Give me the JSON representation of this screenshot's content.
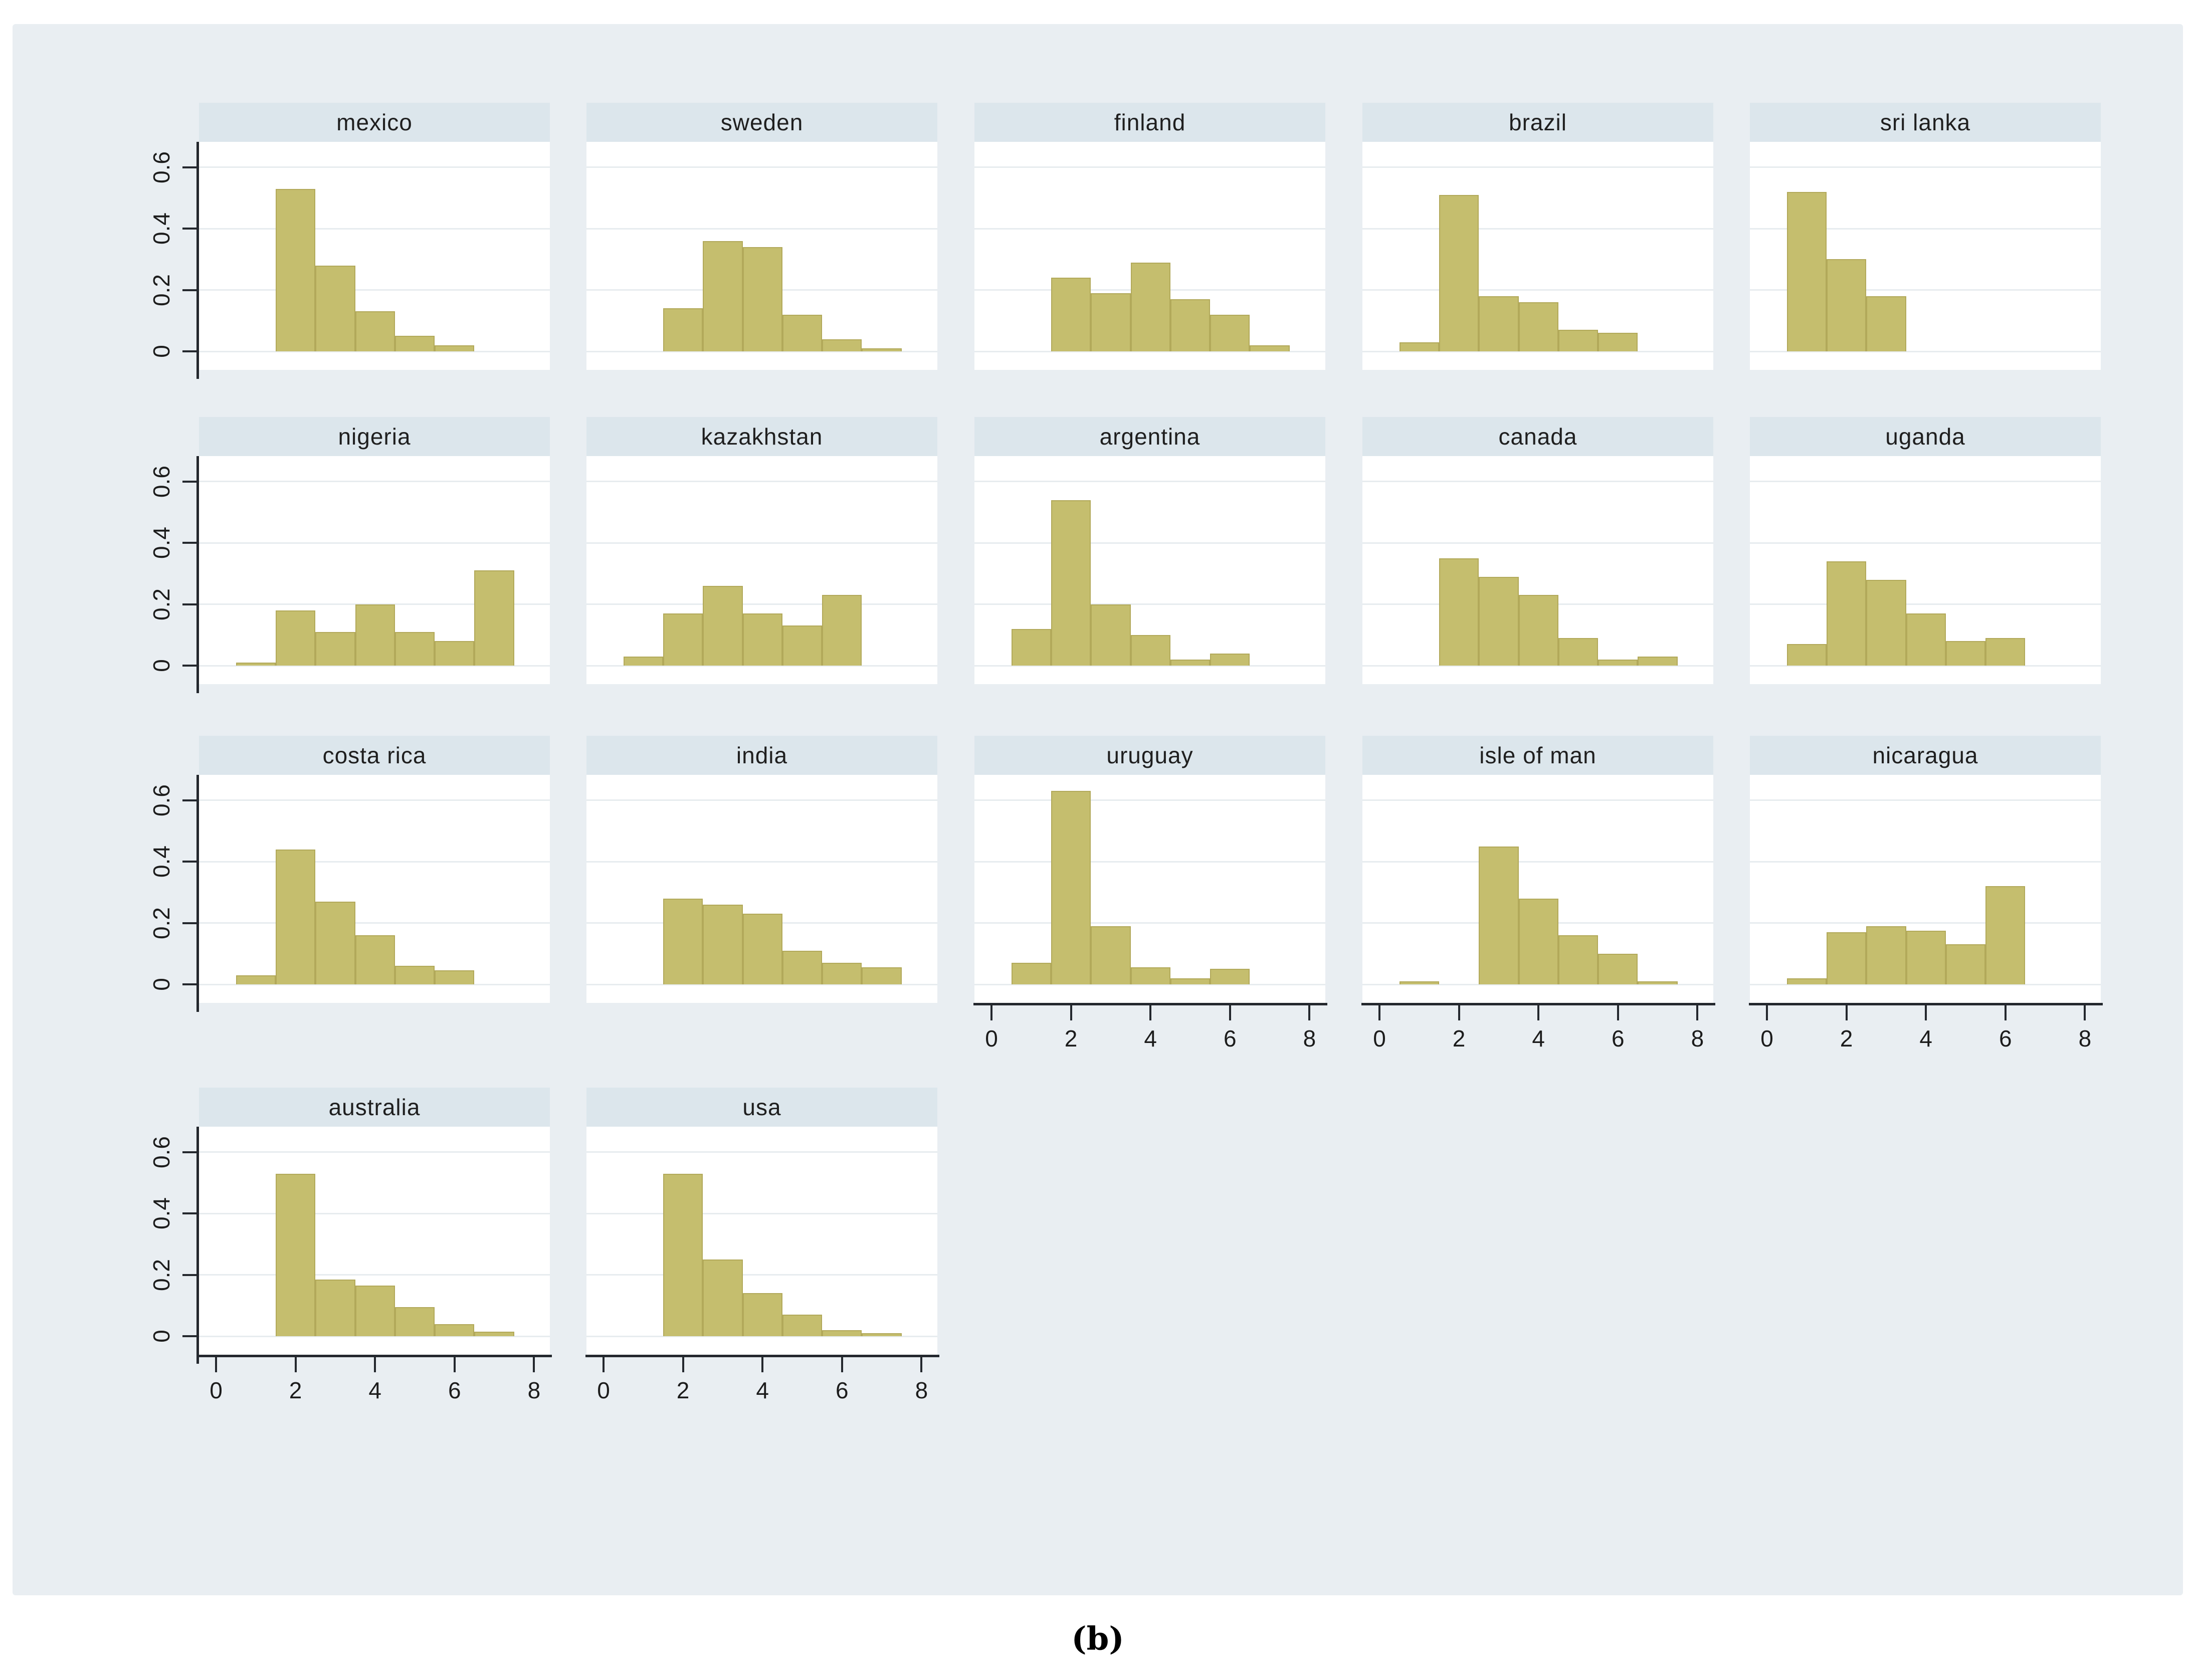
{
  "caption": "(b)",
  "colors": {
    "figure_bg": "#e9eef2",
    "header_bg": "#dce6ec",
    "plot_bg": "#ffffff",
    "bar_fill": "#c5be6e",
    "bar_border": "#b2a95a",
    "grid": "#e7ecef",
    "axis": "#24282e",
    "text": "#1c1c1c"
  },
  "chart_data": {
    "type": "bar",
    "subtype": "faceted-histograms",
    "title": "",
    "xlabel": "",
    "ylabel": "",
    "legend": "none",
    "grid": "horizontal",
    "bin_width": 1,
    "xlim": [
      -0.43,
      8.4
    ],
    "ylim": [
      -0.06,
      0.68
    ],
    "x_ticks": [
      0,
      2,
      4,
      6,
      8
    ],
    "x_tick_labels": [
      "0",
      "2",
      "4",
      "6",
      "8"
    ],
    "y_tick_values": [
      0,
      0.2,
      0.4,
      0.6
    ],
    "y_tick_labels": [
      "0",
      "0.2",
      "0.4",
      "0.6"
    ],
    "panels": [
      {
        "title": "mexico",
        "row": 0,
        "col": 0,
        "y_axis": true,
        "x_axis": false,
        "bars": [
          [
            1.5,
            0.53
          ],
          [
            2.5,
            0.28
          ],
          [
            3.5,
            0.13
          ],
          [
            4.5,
            0.05
          ],
          [
            5.5,
            0.02
          ]
        ]
      },
      {
        "title": "sweden",
        "row": 0,
        "col": 1,
        "y_axis": false,
        "x_axis": false,
        "bars": [
          [
            1.5,
            0.14
          ],
          [
            2.5,
            0.36
          ],
          [
            3.5,
            0.34
          ],
          [
            4.5,
            0.12
          ],
          [
            5.5,
            0.04
          ],
          [
            6.5,
            0.01
          ]
        ]
      },
      {
        "title": "finland",
        "row": 0,
        "col": 2,
        "y_axis": false,
        "x_axis": false,
        "bars": [
          [
            1.5,
            0.24
          ],
          [
            2.5,
            0.19
          ],
          [
            3.5,
            0.29
          ],
          [
            4.5,
            0.17
          ],
          [
            5.5,
            0.12
          ],
          [
            6.5,
            0.02
          ]
        ]
      },
      {
        "title": "brazil",
        "row": 0,
        "col": 3,
        "y_axis": false,
        "x_axis": false,
        "bars": [
          [
            0.5,
            0.03
          ],
          [
            1.5,
            0.51
          ],
          [
            2.5,
            0.18
          ],
          [
            3.5,
            0.16
          ],
          [
            4.5,
            0.07
          ],
          [
            5.5,
            0.06
          ]
        ]
      },
      {
        "title": "sri lanka",
        "row": 0,
        "col": 4,
        "y_axis": false,
        "x_axis": false,
        "bars": [
          [
            0.5,
            0.52
          ],
          [
            1.5,
            0.3
          ],
          [
            2.5,
            0.18
          ]
        ]
      },
      {
        "title": "nigeria",
        "row": 1,
        "col": 0,
        "y_axis": true,
        "x_axis": false,
        "bars": [
          [
            0.5,
            0.01
          ],
          [
            1.5,
            0.18
          ],
          [
            2.5,
            0.11
          ],
          [
            3.5,
            0.2
          ],
          [
            4.5,
            0.11
          ],
          [
            5.5,
            0.08
          ],
          [
            6.5,
            0.31
          ]
        ]
      },
      {
        "title": "kazakhstan",
        "row": 1,
        "col": 1,
        "y_axis": false,
        "x_axis": false,
        "bars": [
          [
            0.5,
            0.03
          ],
          [
            1.5,
            0.17
          ],
          [
            2.5,
            0.26
          ],
          [
            3.5,
            0.17
          ],
          [
            4.5,
            0.13
          ],
          [
            5.5,
            0.23
          ]
        ]
      },
      {
        "title": "argentina",
        "row": 1,
        "col": 2,
        "y_axis": false,
        "x_axis": false,
        "bars": [
          [
            0.5,
            0.12
          ],
          [
            1.5,
            0.54
          ],
          [
            2.5,
            0.2
          ],
          [
            3.5,
            0.1
          ],
          [
            4.5,
            0.02
          ],
          [
            5.5,
            0.04
          ]
        ]
      },
      {
        "title": "canada",
        "row": 1,
        "col": 3,
        "y_axis": false,
        "x_axis": false,
        "bars": [
          [
            1.5,
            0.35
          ],
          [
            2.5,
            0.29
          ],
          [
            3.5,
            0.23
          ],
          [
            4.5,
            0.09
          ],
          [
            5.5,
            0.02
          ],
          [
            6.5,
            0.03
          ]
        ]
      },
      {
        "title": "uganda",
        "row": 1,
        "col": 4,
        "y_axis": false,
        "x_axis": false,
        "bars": [
          [
            0.5,
            0.07
          ],
          [
            1.5,
            0.34
          ],
          [
            2.5,
            0.28
          ],
          [
            3.5,
            0.17
          ],
          [
            4.5,
            0.08
          ],
          [
            5.5,
            0.09
          ]
        ]
      },
      {
        "title": "costa rica",
        "row": 2,
        "col": 0,
        "y_axis": true,
        "x_axis": false,
        "bars": [
          [
            0.5,
            0.03
          ],
          [
            1.5,
            0.44
          ],
          [
            2.5,
            0.27
          ],
          [
            3.5,
            0.16
          ],
          [
            4.5,
            0.06
          ],
          [
            5.5,
            0.045
          ]
        ]
      },
      {
        "title": "india",
        "row": 2,
        "col": 1,
        "y_axis": false,
        "x_axis": false,
        "bars": [
          [
            1.5,
            0.28
          ],
          [
            2.5,
            0.26
          ],
          [
            3.5,
            0.23
          ],
          [
            4.5,
            0.11
          ],
          [
            5.5,
            0.07
          ],
          [
            6.5,
            0.055
          ]
        ]
      },
      {
        "title": "uruguay",
        "row": 2,
        "col": 2,
        "y_axis": false,
        "x_axis": true,
        "bars": [
          [
            0.5,
            0.07
          ],
          [
            1.5,
            0.63
          ],
          [
            2.5,
            0.19
          ],
          [
            3.5,
            0.055
          ],
          [
            4.5,
            0.02
          ],
          [
            5.5,
            0.05
          ]
        ]
      },
      {
        "title": "isle of man",
        "row": 2,
        "col": 3,
        "y_axis": false,
        "x_axis": true,
        "bars": [
          [
            0.5,
            0.01
          ],
          [
            2.5,
            0.45
          ],
          [
            3.5,
            0.28
          ],
          [
            4.5,
            0.16
          ],
          [
            5.5,
            0.1
          ],
          [
            6.5,
            0.01
          ]
        ]
      },
      {
        "title": "nicaragua",
        "row": 2,
        "col": 4,
        "y_axis": false,
        "x_axis": true,
        "bars": [
          [
            0.5,
            0.02
          ],
          [
            1.5,
            0.17
          ],
          [
            2.5,
            0.19
          ],
          [
            3.5,
            0.175
          ],
          [
            4.5,
            0.13
          ],
          [
            5.5,
            0.32
          ]
        ]
      },
      {
        "title": "australia",
        "row": 3,
        "col": 0,
        "y_axis": true,
        "x_axis": true,
        "bars": [
          [
            1.5,
            0.53
          ],
          [
            2.5,
            0.185
          ],
          [
            3.5,
            0.165
          ],
          [
            4.5,
            0.095
          ],
          [
            5.5,
            0.04
          ],
          [
            6.5,
            0.015
          ]
        ]
      },
      {
        "title": "usa",
        "row": 3,
        "col": 1,
        "y_axis": false,
        "x_axis": true,
        "bars": [
          [
            1.5,
            0.53
          ],
          [
            2.5,
            0.25
          ],
          [
            3.5,
            0.14
          ],
          [
            4.5,
            0.07
          ],
          [
            5.5,
            0.02
          ],
          [
            6.5,
            0.01
          ]
        ]
      }
    ]
  }
}
